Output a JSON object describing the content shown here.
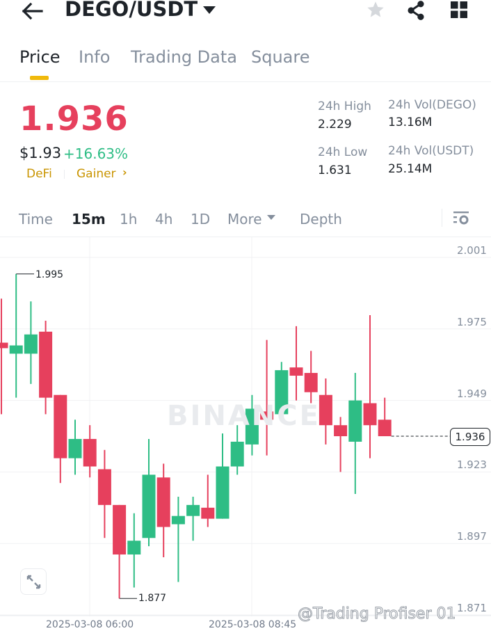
{
  "header": {
    "back_icon": "arrow-left-icon",
    "pair": "DEGO/USDT",
    "pair_dropdown_icon": "caret-down-icon",
    "favorite_icon": "star-icon",
    "share_icon": "share-icon",
    "menu_icon": "grid-icon"
  },
  "tabs": [
    {
      "label": "Price",
      "active": true
    },
    {
      "label": "Info",
      "active": false
    },
    {
      "label": "Trading Data",
      "active": false
    },
    {
      "label": "Square",
      "active": false
    }
  ],
  "ticker": {
    "last_price": "1.936",
    "usd_price": "$1.93",
    "change_pct": "+16.63%",
    "tags": [
      "DeFi",
      "Gainer"
    ],
    "tag_chevron": "›",
    "colors": {
      "down": "#e6405d",
      "up": "#2ebd85",
      "tag": "#c99400",
      "accent": "#f0b90b"
    }
  },
  "stats": {
    "high_label": "24h High",
    "high_value": "2.229",
    "low_label": "24h Low",
    "low_value": "1.631",
    "vol_base_label": "24h Vol(DEGO)",
    "vol_base_value": "13.16M",
    "vol_quote_label": "24h Vol(USDT)",
    "vol_quote_value": "25.14M"
  },
  "intervals": [
    {
      "label": "Time",
      "active": false
    },
    {
      "label": "15m",
      "active": true
    },
    {
      "label": "1h",
      "active": false
    },
    {
      "label": "4h",
      "active": false
    },
    {
      "label": "1D",
      "active": false
    },
    {
      "label": "More",
      "active": false
    },
    {
      "label": "Depth",
      "active": false
    }
  ],
  "chart": {
    "watermark": "BINANCE",
    "y_axis": [
      "2.001",
      "1.975",
      "1.949",
      "1.923",
      "1.897",
      "1.871"
    ],
    "x_axis": [
      "2025-03-08 06:00",
      "2025-03-08 08:45"
    ],
    "high_marker": "1.995",
    "low_marker": "1.877",
    "last_price_marker": "1.936",
    "expand_icon": "expand-icon"
  },
  "chart_data": {
    "type": "candlestick",
    "title": "DEGO/USDT 15m",
    "interval": "15m",
    "ylim": [
      1.871,
      2.001
    ],
    "y_ticks": [
      2.001,
      1.975,
      1.949,
      1.923,
      1.897,
      1.871
    ],
    "x_ticks": [
      "2025-03-08 06:00",
      "2025-03-08 08:45"
    ],
    "candles": [
      {
        "o": 1.97,
        "c": 1.968,
        "h": 1.986,
        "l": 1.944
      },
      {
        "o": 1.966,
        "c": 1.969,
        "h": 1.995,
        "l": 1.95
      },
      {
        "o": 1.966,
        "c": 1.973,
        "h": 1.985,
        "l": 1.955
      },
      {
        "o": 1.974,
        "c": 1.95,
        "h": 1.978,
        "l": 1.944
      },
      {
        "o": 1.951,
        "c": 1.928,
        "h": 1.951,
        "l": 1.919
      },
      {
        "o": 1.928,
        "c": 1.935,
        "h": 1.942,
        "l": 1.922
      },
      {
        "o": 1.935,
        "c": 1.925,
        "h": 1.94,
        "l": 1.921
      },
      {
        "o": 1.924,
        "c": 1.911,
        "h": 1.931,
        "l": 1.899
      },
      {
        "o": 1.911,
        "c": 1.893,
        "h": 1.911,
        "l": 1.877
      },
      {
        "o": 1.893,
        "c": 1.898,
        "h": 1.908,
        "l": 1.881
      },
      {
        "o": 1.899,
        "c": 1.922,
        "h": 1.935,
        "l": 1.896
      },
      {
        "o": 1.921,
        "c": 1.903,
        "h": 1.926,
        "l": 1.892
      },
      {
        "o": 1.904,
        "c": 1.907,
        "h": 1.914,
        "l": 1.883
      },
      {
        "o": 1.907,
        "c": 1.911,
        "h": 1.914,
        "l": 1.898
      },
      {
        "o": 1.91,
        "c": 1.906,
        "h": 1.922,
        "l": 1.903
      },
      {
        "o": 1.906,
        "c": 1.925,
        "h": 1.937,
        "l": 1.906
      },
      {
        "o": 1.925,
        "c": 1.934,
        "h": 1.94,
        "l": 1.922
      },
      {
        "o": 1.933,
        "c": 1.946,
        "h": 1.951,
        "l": 1.929
      },
      {
        "o": 1.945,
        "c": 1.942,
        "h": 1.971,
        "l": 1.929
      },
      {
        "o": 1.944,
        "c": 1.96,
        "h": 1.963,
        "l": 1.942
      },
      {
        "o": 1.961,
        "c": 1.958,
        "h": 1.976,
        "l": 1.949
      },
      {
        "o": 1.959,
        "c": 1.952,
        "h": 1.967,
        "l": 1.948
      },
      {
        "o": 1.951,
        "c": 1.94,
        "h": 1.957,
        "l": 1.933
      },
      {
        "o": 1.94,
        "c": 1.936,
        "h": 1.943,
        "l": 1.923
      },
      {
        "o": 1.934,
        "c": 1.949,
        "h": 1.959,
        "l": 1.915
      },
      {
        "o": 1.948,
        "c": 1.94,
        "h": 1.98,
        "l": 1.928
      },
      {
        "o": 1.942,
        "c": 1.936,
        "h": 1.95,
        "l": 1.936
      }
    ],
    "annotations": {
      "high": 1.995,
      "low": 1.877,
      "last": 1.936
    },
    "grid": true
  },
  "overlay": {
    "footer_watermark": "@Trading Profiser 01"
  }
}
